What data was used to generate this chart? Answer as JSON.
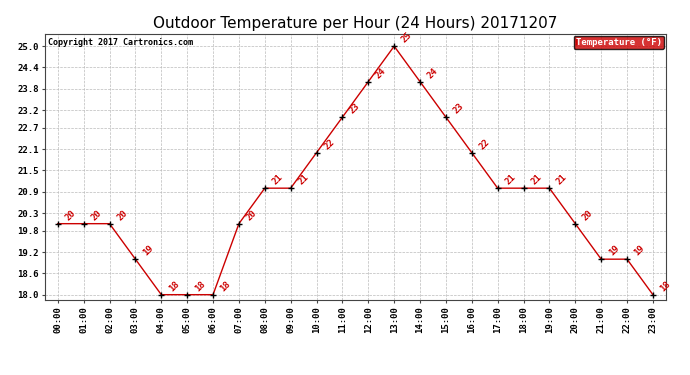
{
  "title": "Outdoor Temperature per Hour (24 Hours) 20171207",
  "copyright": "Copyright 2017 Cartronics.com",
  "legend_label": "Temperature (°F)",
  "hours": [
    "00:00",
    "01:00",
    "02:00",
    "03:00",
    "04:00",
    "05:00",
    "06:00",
    "07:00",
    "08:00",
    "09:00",
    "10:00",
    "11:00",
    "12:00",
    "13:00",
    "14:00",
    "15:00",
    "16:00",
    "17:00",
    "18:00",
    "19:00",
    "20:00",
    "21:00",
    "22:00",
    "23:00"
  ],
  "temperatures": [
    20,
    20,
    20,
    19,
    18,
    18,
    18,
    20,
    21,
    21,
    22,
    23,
    24,
    25,
    24,
    23,
    22,
    21,
    21,
    21,
    20,
    19,
    19,
    18
  ],
  "ylim_min": 17.85,
  "ylim_max": 25.35,
  "yticks": [
    18.0,
    18.6,
    19.2,
    19.8,
    20.3,
    20.9,
    21.5,
    22.1,
    22.7,
    23.2,
    23.8,
    24.4,
    25.0
  ],
  "line_color": "#cc0000",
  "marker_color": "#000000",
  "label_color": "#cc0000",
  "grid_color": "#bbbbbb",
  "background_color": "#ffffff",
  "legend_bg": "#cc0000",
  "legend_fg": "#ffffff",
  "title_fontsize": 11,
  "annotation_fontsize": 6.5,
  "copyright_fontsize": 6,
  "tick_fontsize": 6.5,
  "legend_fontsize": 6.5
}
